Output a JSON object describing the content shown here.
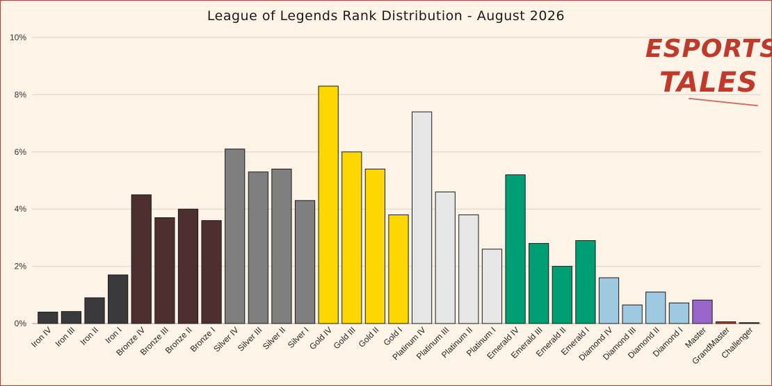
{
  "chart_data": {
    "type": "bar",
    "title": "League of Legends Rank Distribution - August 2026",
    "xlabel": "",
    "ylabel": "",
    "ylim": [
      0,
      10
    ],
    "yticks": [
      "0%",
      "2%",
      "4%",
      "6%",
      "8%",
      "10%"
    ],
    "grid": true,
    "categories": [
      "Iron IV",
      "Iron III",
      "Iron II",
      "Iron I",
      "Bronze IV",
      "Bronze III",
      "Bronze II",
      "Bronze I",
      "Silver IV",
      "Silver III",
      "Silver II",
      "Silver I",
      "Gold IV",
      "Gold III",
      "Gold II",
      "Gold I",
      "Platinum IV",
      "Platinum III",
      "Platinum II",
      "Platinum I",
      "Emerald IV",
      "Emerald III",
      "Emerald II",
      "Emerald I",
      "Diamond IV",
      "Diamond III",
      "Diamond II",
      "Diamond I",
      "Master",
      "GrandMaster",
      "Challenger"
    ],
    "values": [
      0.4,
      0.42,
      0.9,
      1.7,
      4.5,
      3.7,
      4.0,
      3.6,
      6.1,
      5.3,
      5.4,
      4.3,
      8.3,
      6.0,
      5.4,
      3.8,
      7.4,
      4.6,
      3.8,
      2.6,
      5.2,
      2.8,
      2.0,
      2.9,
      1.6,
      0.65,
      1.1,
      0.72,
      0.82,
      0.06,
      0.03
    ],
    "colors": [
      "#3a3a3d",
      "#3a3a3d",
      "#3a3a3d",
      "#3a3a3d",
      "#4e2f2f",
      "#4e2f2f",
      "#4e2f2f",
      "#4e2f2f",
      "#7f7f7f",
      "#7f7f7f",
      "#7f7f7f",
      "#7f7f7f",
      "#ffd700",
      "#ffd700",
      "#ffd700",
      "#ffd700",
      "#e6e6e6",
      "#e6e6e6",
      "#e6e6e6",
      "#e6e6e6",
      "#009e73",
      "#009e73",
      "#009e73",
      "#009e73",
      "#9ecae1",
      "#9ecae1",
      "#9ecae1",
      "#9ecae1",
      "#9966cc",
      "#c0392b",
      "#333333"
    ]
  },
  "logo": {
    "line1": "ESPORTS",
    "line2": "TALES",
    "color": "#c0392b"
  }
}
